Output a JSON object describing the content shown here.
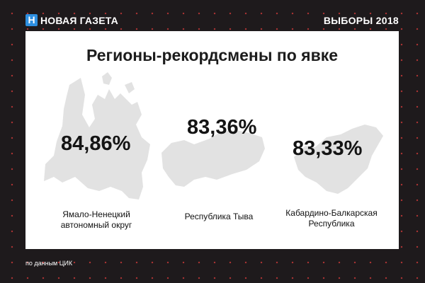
{
  "header": {
    "logo_letter": "Н",
    "logo_text": "НОВАЯ ГАЗЕТА",
    "section_tag": "ВЫБОРЫ 2018"
  },
  "title": "Регионы-рекордсмены по явке",
  "regions": [
    {
      "percent": "84,86%",
      "name_line1": "Ямало-Ненецкий",
      "name_line2": "автономный округ",
      "turnout": 84.86
    },
    {
      "percent": "83,36%",
      "name_line1": "Республика Тыва",
      "name_line2": "",
      "turnout": 83.36
    },
    {
      "percent": "83,33%",
      "name_line1": "Кабардино-Балкарская",
      "name_line2": "Республика",
      "turnout": 83.33
    }
  ],
  "footer": {
    "source": "по данным ЦИК"
  },
  "colors": {
    "background": "#1e1a1c",
    "card": "#ffffff",
    "map_shape": "#e2e2e2",
    "logo_accent": "#2d8fe0",
    "dots": "#e13c3c"
  }
}
